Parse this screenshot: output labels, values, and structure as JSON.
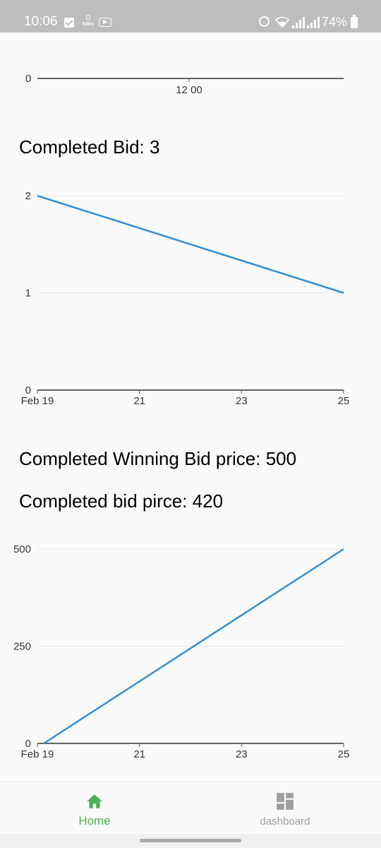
{
  "status_bar": {
    "time": "10:06",
    "net_speed": "0",
    "net_unit": "KB/s",
    "battery": "74%"
  },
  "top_chart": {
    "y_tick": "0",
    "x_tick": "12 00"
  },
  "bid_section": {
    "heading": "Completed Bid: 3",
    "chart_data": {
      "type": "line",
      "x": [
        "Feb 19",
        "Feb 25"
      ],
      "x_ticks": [
        "Feb 19",
        "21",
        "23",
        "25"
      ],
      "y_ticks": [
        "0",
        "1",
        "2"
      ],
      "ylim": [
        0,
        2
      ],
      "series": [
        {
          "values": [
            2,
            1
          ]
        }
      ],
      "grid": true,
      "line_color": "#2f8fdc"
    }
  },
  "price_section": {
    "winning_heading": "Completed Winning Bid price: 500",
    "bid_heading": "Completed bid pirce: 420",
    "chart_data": {
      "type": "line",
      "x": [
        "Feb 19",
        "Feb 25"
      ],
      "x_ticks": [
        "Feb 19",
        "21",
        "23",
        "25"
      ],
      "y_ticks": [
        "0",
        "250",
        "500"
      ],
      "ylim": [
        0,
        500
      ],
      "series": [
        {
          "values": [
            0,
            500
          ]
        }
      ],
      "grid": true,
      "line_color": "#2f8fdc"
    }
  },
  "bottom_nav": {
    "home_label": "Home",
    "dashboard_label": "dashboard",
    "home_icon": "home-icon",
    "dashboard_icon": "dashboard-icon",
    "active_color": "#4caf50"
  }
}
